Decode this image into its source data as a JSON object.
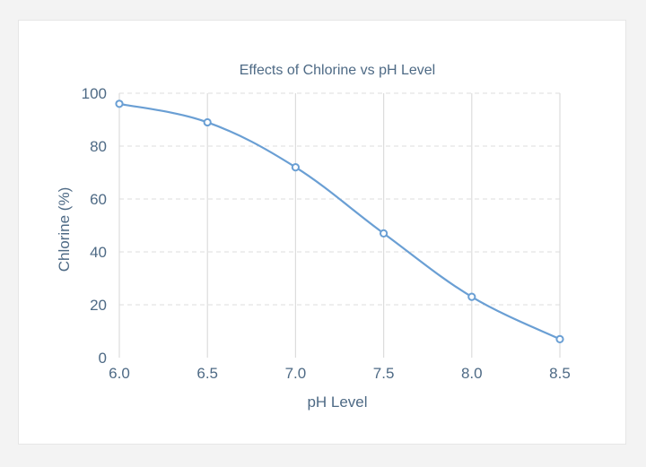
{
  "chart_data": {
    "type": "line",
    "title": "Effects of Chlorine vs pH Level",
    "xlabel": "pH Level",
    "ylabel": "Chlorine (%)",
    "x": [
      6.0,
      6.5,
      7.0,
      7.5,
      8.0,
      8.5
    ],
    "x_tick_labels": [
      "6.0",
      "6.5",
      "7.0",
      "7.5",
      "8.0",
      "8.5"
    ],
    "y_ticks": [
      0,
      20,
      40,
      60,
      80,
      100
    ],
    "y_tick_labels": [
      "0",
      "20",
      "40",
      "60",
      "80",
      "100"
    ],
    "xlim": [
      6.0,
      8.5
    ],
    "ylim": [
      0,
      100
    ],
    "series": [
      {
        "values": [
          96,
          89,
          72,
          47,
          23,
          7
        ]
      }
    ],
    "grid": {
      "vertical": "solid",
      "horizontal": "dashed"
    },
    "legend": "none",
    "colors": {
      "line": "#6a9fd4",
      "marker_fill": "#ffffff",
      "grid": "#dcdcdc",
      "text": "#4e6a85"
    }
  }
}
